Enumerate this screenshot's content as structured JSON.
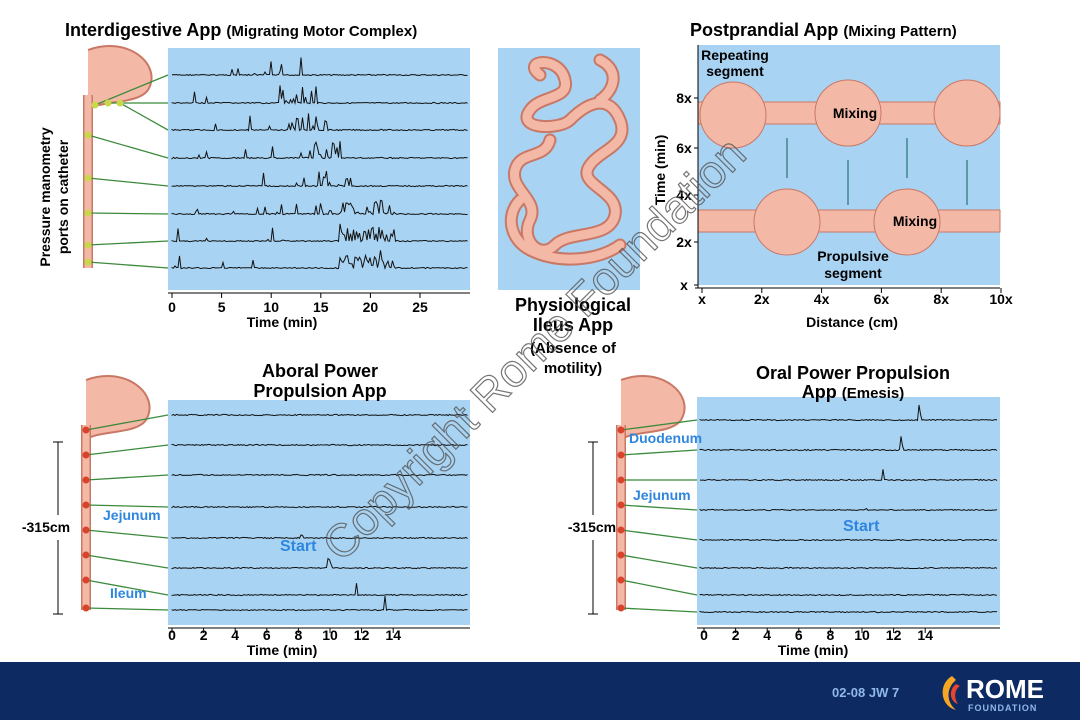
{
  "interdigestive": {
    "title": "Interdigestive App",
    "subtitle": "(Migrating Motor Complex)",
    "ylabel": [
      "Pressure manometry",
      "ports on catheter"
    ],
    "xticks": [
      "0",
      "5",
      "10",
      "15",
      "20",
      "25"
    ],
    "xlabel": "Time (min)"
  },
  "ileus": {
    "title": [
      "Physiological",
      "Ileus App",
      "(Absence of",
      "motility)"
    ]
  },
  "postprandial": {
    "title": "Postprandial App",
    "subtitle": "(Mixing Pattern)",
    "labels": {
      "repeating": [
        "Repeating",
        "segment"
      ],
      "mixing": [
        "Mixing",
        "Mixing"
      ],
      "propulsive": [
        "Propulsive",
        "segment"
      ]
    },
    "ylabel": "Time (min)",
    "yticks": [
      "x",
      "2x",
      "4x",
      "6x",
      "8x"
    ],
    "xticks": [
      "x",
      "2x",
      "4x",
      "6x",
      "8x",
      "10x"
    ],
    "xlabel": "Distance (cm)"
  },
  "aboral": {
    "title": [
      "Aboral Power",
      "Propulsion App"
    ],
    "length": "-315cm",
    "labels": [
      "Jejunum",
      "Ileum"
    ],
    "start": "Start",
    "xticks": [
      "0",
      "2",
      "4",
      "6",
      "8",
      "10",
      "12",
      "14"
    ],
    "xlabel": "Time (min)"
  },
  "oral": {
    "title": [
      "Oral Power Propulsion",
      "App"
    ],
    "subtitle": "(Emesis)",
    "length": "-315cm",
    "labels": [
      "Duodenum",
      "Jejunum"
    ],
    "start": "Start",
    "xticks": [
      "0",
      "2",
      "4",
      "6",
      "8",
      "10",
      "12",
      "14"
    ],
    "xlabel": "Time (min)"
  },
  "footer": {
    "code": "02-08  JW 7",
    "logo": "ROME",
    "logo_sub": "FOUNDATION"
  },
  "watermark": "Copyright Rome Foundation"
}
